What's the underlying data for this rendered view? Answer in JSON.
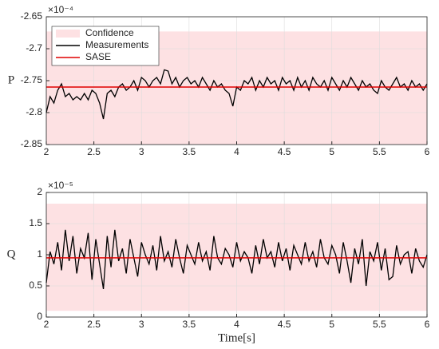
{
  "chart_data": [
    {
      "type": "line",
      "ylabel": "P",
      "y_exponent": "×10⁻⁴",
      "xlim": [
        2,
        6
      ],
      "xticks": [
        2,
        2.5,
        3,
        3.5,
        4,
        4.5,
        5,
        5.5,
        6
      ],
      "ylim": [
        -2.85,
        -2.65
      ],
      "yticks": [
        -2.85,
        -2.8,
        -2.75,
        -2.7,
        -2.65
      ],
      "grid": true,
      "legend": "upper left",
      "x": [
        2.0,
        2.04,
        2.08,
        2.12,
        2.16,
        2.2,
        2.24,
        2.28,
        2.32,
        2.36,
        2.4,
        2.44,
        2.48,
        2.52,
        2.56,
        2.6,
        2.64,
        2.68,
        2.72,
        2.76,
        2.8,
        2.84,
        2.88,
        2.92,
        2.96,
        3.0,
        3.04,
        3.08,
        3.12,
        3.16,
        3.2,
        3.24,
        3.28,
        3.32,
        3.36,
        3.4,
        3.44,
        3.48,
        3.52,
        3.56,
        3.6,
        3.64,
        3.68,
        3.72,
        3.76,
        3.8,
        3.84,
        3.88,
        3.92,
        3.96,
        4.0,
        4.04,
        4.08,
        4.12,
        4.16,
        4.2,
        4.24,
        4.28,
        4.32,
        4.36,
        4.4,
        4.44,
        4.48,
        4.52,
        4.56,
        4.6,
        4.64,
        4.68,
        4.72,
        4.76,
        4.8,
        4.84,
        4.88,
        4.92,
        4.96,
        5.0,
        5.04,
        5.08,
        5.12,
        5.16,
        5.2,
        5.24,
        5.28,
        5.32,
        5.36,
        5.4,
        5.44,
        5.48,
        5.52,
        5.56,
        5.6,
        5.64,
        5.68,
        5.72,
        5.76,
        5.8,
        5.84,
        5.88,
        5.92,
        5.96,
        6.0
      ],
      "series": [
        {
          "name": "Confidence",
          "kind": "band",
          "color": "#fde1e3",
          "lower": -2.85,
          "upper": -2.673
        },
        {
          "name": "Measurements",
          "kind": "line",
          "color": "#000000",
          "values": [
            -2.8,
            -2.775,
            -2.785,
            -2.765,
            -2.755,
            -2.775,
            -2.77,
            -2.78,
            -2.775,
            -2.78,
            -2.77,
            -2.78,
            -2.765,
            -2.77,
            -2.785,
            -2.81,
            -2.77,
            -2.765,
            -2.775,
            -2.76,
            -2.755,
            -2.765,
            -2.76,
            -2.75,
            -2.765,
            -2.745,
            -2.75,
            -2.76,
            -2.75,
            -2.745,
            -2.755,
            -2.733,
            -2.735,
            -2.755,
            -2.745,
            -2.76,
            -2.75,
            -2.745,
            -2.755,
            -2.75,
            -2.76,
            -2.745,
            -2.755,
            -2.765,
            -2.75,
            -2.76,
            -2.755,
            -2.765,
            -2.77,
            -2.79,
            -2.76,
            -2.765,
            -2.75,
            -2.755,
            -2.745,
            -2.765,
            -2.75,
            -2.76,
            -2.745,
            -2.755,
            -2.75,
            -2.765,
            -2.745,
            -2.755,
            -2.75,
            -2.765,
            -2.745,
            -2.76,
            -2.75,
            -2.765,
            -2.745,
            -2.755,
            -2.76,
            -2.75,
            -2.765,
            -2.745,
            -2.755,
            -2.765,
            -2.75,
            -2.76,
            -2.745,
            -2.755,
            -2.765,
            -2.75,
            -2.76,
            -2.755,
            -2.765,
            -2.77,
            -2.75,
            -2.76,
            -2.765,
            -2.755,
            -2.745,
            -2.76,
            -2.755,
            -2.765,
            -2.75,
            -2.76,
            -2.755,
            -2.765,
            -2.755
          ]
        },
        {
          "name": "SASE",
          "kind": "hline",
          "color": "#e00000",
          "value": -2.76
        }
      ]
    },
    {
      "type": "line",
      "ylabel": "Q",
      "y_exponent": "×10⁻⁵",
      "xlabel": "Time[s]",
      "xlim": [
        2,
        6
      ],
      "xticks": [
        2,
        2.5,
        3,
        3.5,
        4,
        4.5,
        5,
        5.5,
        6
      ],
      "ylim": [
        0,
        2
      ],
      "yticks": [
        0,
        0.5,
        1,
        1.5,
        2
      ],
      "grid": true,
      "x": [
        2.0,
        2.04,
        2.08,
        2.12,
        2.16,
        2.2,
        2.24,
        2.28,
        2.32,
        2.36,
        2.4,
        2.44,
        2.48,
        2.52,
        2.56,
        2.6,
        2.64,
        2.68,
        2.72,
        2.76,
        2.8,
        2.84,
        2.88,
        2.92,
        2.96,
        3.0,
        3.04,
        3.08,
        3.12,
        3.16,
        3.2,
        3.24,
        3.28,
        3.32,
        3.36,
        3.4,
        3.44,
        3.48,
        3.52,
        3.56,
        3.6,
        3.64,
        3.68,
        3.72,
        3.76,
        3.8,
        3.84,
        3.88,
        3.92,
        3.96,
        4.0,
        4.04,
        4.08,
        4.12,
        4.16,
        4.2,
        4.24,
        4.28,
        4.32,
        4.36,
        4.4,
        4.44,
        4.48,
        4.52,
        4.56,
        4.6,
        4.64,
        4.68,
        4.72,
        4.76,
        4.8,
        4.84,
        4.88,
        4.92,
        4.96,
        5.0,
        5.04,
        5.08,
        5.12,
        5.16,
        5.2,
        5.24,
        5.28,
        5.32,
        5.36,
        5.4,
        5.44,
        5.48,
        5.52,
        5.56,
        5.6,
        5.64,
        5.68,
        5.72,
        5.76,
        5.8,
        5.84,
        5.88,
        5.92,
        5.96,
        6.0
      ],
      "series": [
        {
          "kind": "band",
          "color": "#fde1e3",
          "lower": 0.1,
          "upper": 1.82
        },
        {
          "kind": "line",
          "color": "#000000",
          "values": [
            0.55,
            1.05,
            0.85,
            1.2,
            0.75,
            1.4,
            0.9,
            1.3,
            0.7,
            1.1,
            0.95,
            1.35,
            0.6,
            1.25,
            0.85,
            0.45,
            1.3,
            0.8,
            1.4,
            0.9,
            1.1,
            0.7,
            1.25,
            0.95,
            0.65,
            1.2,
            1.0,
            0.85,
            1.15,
            0.75,
            1.3,
            0.9,
            1.05,
            0.8,
            1.25,
            0.95,
            0.7,
            1.15,
            1.0,
            0.85,
            1.2,
            0.9,
            1.05,
            0.75,
            1.3,
            0.95,
            0.85,
            1.1,
            1.0,
            0.8,
            1.2,
            0.9,
            1.05,
            0.95,
            0.7,
            1.15,
            0.85,
            1.25,
            0.95,
            1.05,
            0.8,
            1.2,
            0.9,
            1.1,
            0.75,
            1.15,
            1.0,
            0.85,
            1.2,
            0.9,
            1.05,
            0.8,
            1.25,
            0.95,
            0.85,
            1.15,
            1.0,
            0.7,
            1.2,
            0.9,
            0.55,
            1.1,
            0.85,
            1.25,
            0.5,
            1.05,
            0.9,
            1.2,
            0.75,
            1.1,
            0.6,
            0.65,
            1.15,
            0.85,
            1.0,
            1.05,
            0.7,
            1.1,
            0.9,
            0.8,
            1.0
          ]
        },
        {
          "kind": "hline",
          "color": "#e00000",
          "value": 0.95
        }
      ]
    }
  ]
}
